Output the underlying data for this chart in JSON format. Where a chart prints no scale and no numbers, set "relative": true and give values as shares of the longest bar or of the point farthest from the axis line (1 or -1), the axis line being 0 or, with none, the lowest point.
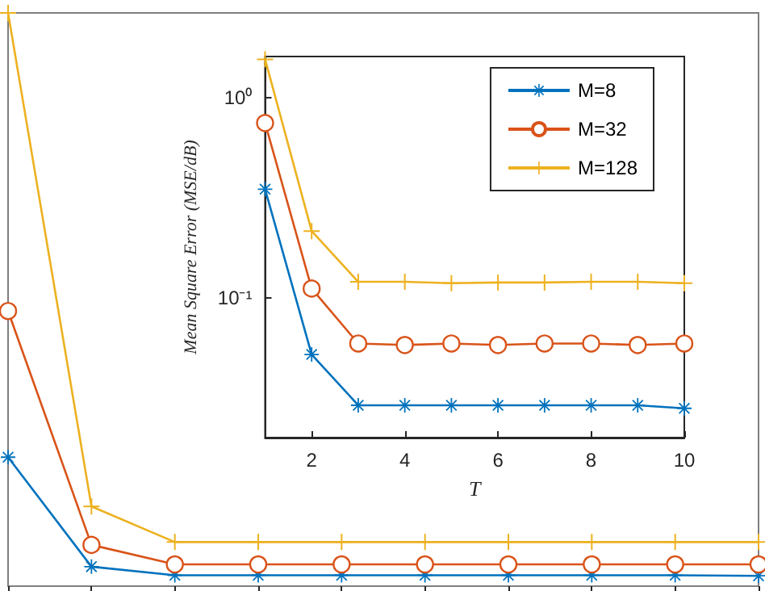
{
  "chart_data": [
    {
      "type": "line",
      "relative": true,
      "categories": [
        null,
        null,
        null,
        null,
        null,
        null,
        null,
        null,
        null,
        null
      ],
      "tick_labels": false,
      "grid": false,
      "legend": false,
      "series": [
        {
          "color": "#0072bd",
          "marker": "star",
          "values": [
            0.225,
            0.034,
            0.019,
            0.019,
            0.019,
            0.019,
            0.019,
            0.019,
            0.019,
            0.018
          ]
        },
        {
          "color": "#d95319",
          "marker": "circle",
          "values": [
            0.48,
            0.072,
            0.038,
            0.038,
            0.038,
            0.038,
            0.038,
            0.038,
            0.038,
            0.038
          ]
        },
        {
          "color": "#edb120",
          "marker": "cross",
          "values": [
            1,
            0.139,
            0.077,
            0.077,
            0.077,
            0.077,
            0.077,
            0.077,
            0.077,
            0.077
          ]
        }
      ]
    },
    {
      "type": "line",
      "xlabel": "T",
      "ylabel": "Mean Square Error (MSE/dB)",
      "x": [
        1,
        2,
        3,
        4,
        5,
        6,
        7,
        8,
        9,
        10
      ],
      "xlim": [
        1,
        10
      ],
      "xticks": [
        2,
        4,
        6,
        8,
        10
      ],
      "ylim": [
        0.02,
        1.6
      ],
      "yticks": [
        {
          "value": 0.1,
          "label": "10⁻¹"
        },
        {
          "value": 1,
          "label": "10⁰"
        }
      ],
      "log": "y",
      "grid": false,
      "legend": "top right",
      "series": [
        {
          "name": "M=8",
          "color": "#0072bd",
          "marker": "star",
          "values": [
            0.348,
            0.052,
            0.029,
            0.029,
            0.029,
            0.029,
            0.029,
            0.029,
            0.029,
            0.028
          ]
        },
        {
          "name": "M=32",
          "color": "#d95319",
          "marker": "circle",
          "values": [
            0.745,
            0.111,
            0.059,
            0.058,
            0.059,
            0.058,
            0.059,
            0.059,
            0.058,
            0.059
          ]
        },
        {
          "name": "M=128",
          "color": "#edb120",
          "marker": "cross",
          "values": [
            1.55,
            0.215,
            0.12,
            0.12,
            0.118,
            0.119,
            0.119,
            0.12,
            0.12,
            0.118
          ]
        }
      ]
    }
  ]
}
